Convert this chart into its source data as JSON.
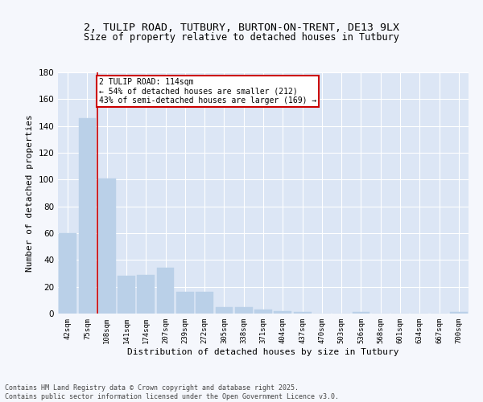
{
  "title": "2, TULIP ROAD, TUTBURY, BURTON-ON-TRENT, DE13 9LX",
  "subtitle": "Size of property relative to detached houses in Tutbury",
  "xlabel": "Distribution of detached houses by size in Tutbury",
  "ylabel": "Number of detached properties",
  "bar_labels": [
    "42sqm",
    "75sqm",
    "108sqm",
    "141sqm",
    "174sqm",
    "207sqm",
    "239sqm",
    "272sqm",
    "305sqm",
    "338sqm",
    "371sqm",
    "404sqm",
    "437sqm",
    "470sqm",
    "503sqm",
    "536sqm",
    "568sqm",
    "601sqm",
    "634sqm",
    "667sqm",
    "700sqm"
  ],
  "bar_values": [
    60,
    146,
    101,
    28,
    29,
    34,
    16,
    16,
    5,
    5,
    3,
    2,
    1,
    0,
    0,
    1,
    0,
    0,
    0,
    0,
    1
  ],
  "bar_color": "#bad0e8",
  "bar_edgecolor": "#bad0e8",
  "property_line_color": "#cc0000",
  "annotation_line1": "2 TULIP ROAD: 114sqm",
  "annotation_line2": "← 54% of detached houses are smaller (212)",
  "annotation_line3": "43% of semi-detached houses are larger (169) →",
  "annotation_box_color": "#ffffff",
  "annotation_box_edgecolor": "#cc0000",
  "ylim": [
    0,
    180
  ],
  "yticks": [
    0,
    20,
    40,
    60,
    80,
    100,
    120,
    140,
    160,
    180
  ],
  "plot_bg": "#dce6f5",
  "fig_bg": "#f5f7fc",
  "footer_line1": "Contains HM Land Registry data © Crown copyright and database right 2025.",
  "footer_line2": "Contains public sector information licensed under the Open Government Licence v3.0."
}
